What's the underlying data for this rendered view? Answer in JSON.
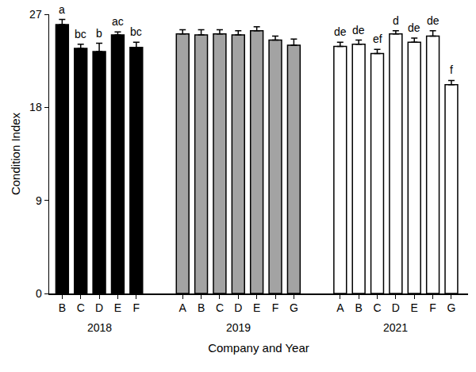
{
  "chart_data": {
    "type": "bar",
    "x_label": "Company and Year",
    "y_label": "Condition Index",
    "ylim": [
      0,
      27
    ],
    "yticks": [
      0,
      9,
      18,
      27
    ],
    "grid": false,
    "groups": [
      {
        "label": "2018",
        "color": "#000000",
        "categories": [
          "B",
          "C",
          "D",
          "E",
          "F"
        ],
        "values": [
          26.0,
          23.7,
          23.4,
          25.0,
          23.8
        ],
        "errors": [
          0.5,
          0.4,
          0.8,
          0.3,
          0.5
        ],
        "significance": [
          "a",
          "bc",
          "b",
          "ac",
          "bc"
        ]
      },
      {
        "label": "2019",
        "color": "#a3a3a3",
        "categories": [
          "A",
          "B",
          "C",
          "D",
          "E",
          "F",
          "G"
        ],
        "values": [
          25.1,
          25.0,
          25.1,
          25.0,
          25.4,
          24.5,
          24.0
        ],
        "errors": [
          0.4,
          0.5,
          0.4,
          0.4,
          0.4,
          0.4,
          0.6
        ]
      },
      {
        "label": "2021",
        "color": "#ffffff",
        "categories": [
          "A",
          "B",
          "C",
          "D",
          "E",
          "F",
          "G"
        ],
        "values": [
          23.9,
          24.1,
          23.2,
          25.1,
          24.3,
          24.9,
          20.2
        ],
        "errors": [
          0.4,
          0.4,
          0.4,
          0.3,
          0.4,
          0.5,
          0.4
        ],
        "significance": [
          "de",
          "de",
          "ef",
          "d",
          "de",
          "de",
          "f"
        ]
      }
    ]
  }
}
